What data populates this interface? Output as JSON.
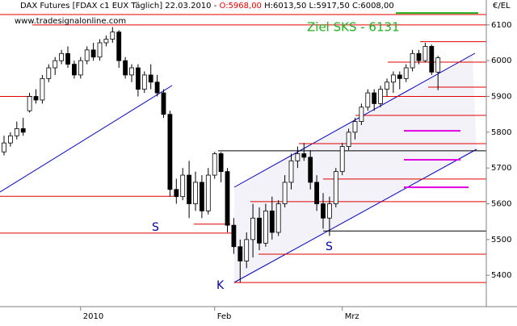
{
  "chart_data": {
    "type": "candlestick",
    "title_parts": [
      "DAX Futures [FDAX c1 EUX  Täglich] 22.03.2010 - ",
      "O:5968,00",
      " H:6013,50 L:5917,50 C:6008,00"
    ],
    "watermark": "www.tradesignalonline.com",
    "unit_label": "€/EL",
    "annotation": "Ziel SKS - 6131",
    "marker_labels": [
      "S",
      "S",
      "K"
    ],
    "categories": [
      null,
      null,
      null,
      null,
      null,
      null,
      null,
      null,
      null,
      null,
      null,
      null,
      "2010",
      null,
      null,
      null,
      null,
      null,
      null,
      null,
      null,
      null,
      null,
      null,
      null,
      null,
      null,
      null,
      null,
      null,
      null,
      null,
      null,
      "Feb",
      null,
      null,
      null,
      null,
      null,
      null,
      null,
      null,
      null,
      null,
      null,
      null,
      null,
      null,
      null,
      null,
      null,
      null,
      null,
      "Mrz",
      null,
      null,
      null,
      null,
      null,
      null,
      null,
      null,
      null,
      null,
      null,
      null,
      null,
      null,
      null
    ],
    "open": [
      5745,
      5770,
      5790,
      5810,
      5860,
      5900,
      5890,
      5950,
      5980,
      6000,
      6020,
      5990,
      5960,
      6000,
      6030,
      6010,
      6050,
      6060,
      6080,
      6000,
      5960,
      5980,
      5920,
      5960,
      5940,
      5910,
      5850,
      5640,
      5620,
      5680,
      5600,
      5660,
      5580,
      5680,
      5740,
      5690,
      5540,
      5480,
      5440,
      5500,
      5560,
      5490,
      5580,
      5520,
      5600,
      5660,
      5720,
      5740,
      5730,
      5660,
      5600,
      5560,
      5600,
      5690,
      5760,
      5800,
      5830,
      5870,
      5910,
      5880,
      5920,
      5940,
      5960,
      5950,
      5980,
      6020,
      6000,
      6040,
      5968
    ],
    "high": [
      5790,
      5800,
      5830,
      5840,
      5910,
      5920,
      5960,
      5990,
      6010,
      6030,
      6040,
      6000,
      6010,
      6040,
      6050,
      6060,
      6070,
      6094,
      6085,
      6010,
      5990,
      5990,
      5970,
      5990,
      5960,
      5920,
      5860,
      5670,
      5700,
      5720,
      5690,
      5680,
      5700,
      5745,
      5745,
      5700,
      5560,
      5500,
      5520,
      5600,
      5590,
      5600,
      5620,
      5610,
      5680,
      5740,
      5760,
      5770,
      5750,
      5680,
      5630,
      5620,
      5700,
      5770,
      5810,
      5840,
      5880,
      5920,
      5920,
      5930,
      5950,
      5970,
      5970,
      5990,
      6030,
      6030,
      6050,
      6045,
      6013.5
    ],
    "low": [
      5735,
      5760,
      5780,
      5790,
      5855,
      5880,
      5880,
      5940,
      5960,
      5990,
      5980,
      5950,
      5950,
      5990,
      6000,
      6000,
      6040,
      6050,
      5980,
      5950,
      5940,
      5900,
      5910,
      5920,
      5900,
      5840,
      5620,
      5600,
      5610,
      5560,
      5580,
      5560,
      5570,
      5670,
      5660,
      5520,
      5460,
      5380,
      5420,
      5450,
      5470,
      5480,
      5500,
      5510,
      5590,
      5640,
      5700,
      5720,
      5640,
      5580,
      5530,
      5510,
      5590,
      5680,
      5750,
      5780,
      5820,
      5860,
      5860,
      5870,
      5900,
      5910,
      5920,
      5940,
      5970,
      5990,
      5995,
      5960,
      5917.5
    ],
    "close": [
      5770,
      5790,
      5810,
      5800,
      5900,
      5890,
      5950,
      5980,
      6000,
      6020,
      5990,
      5960,
      6000,
      6030,
      6010,
      6050,
      6060,
      6080,
      6000,
      5960,
      5980,
      5920,
      5960,
      5940,
      5910,
      5850,
      5640,
      5620,
      5680,
      5600,
      5660,
      5580,
      5680,
      5740,
      5690,
      5540,
      5480,
      5440,
      5500,
      5560,
      5490,
      5580,
      5520,
      5600,
      5660,
      5720,
      5740,
      5730,
      5660,
      5600,
      5560,
      5600,
      5690,
      5760,
      5800,
      5830,
      5870,
      5910,
      5880,
      5920,
      5940,
      5960,
      5950,
      5980,
      6020,
      6000,
      6040,
      5968,
      6008
    ],
    "ylim": [
      5317,
      6147
    ],
    "yticks": [
      5400,
      5500,
      5600,
      5700,
      5800,
      5900,
      6000,
      6100
    ],
    "red_levels": [
      6129,
      6100,
      6053,
      5996,
      5926,
      5900,
      5900,
      5847,
      5768,
      5669,
      5621,
      5606,
      5543,
      5518,
      5459,
      5380
    ],
    "magenta_levels": [
      5804,
      5723,
      5646
    ],
    "black_levels": [
      5748,
      5524
    ],
    "target_level": 6131,
    "colors": {
      "level": "#e00000",
      "magenta": "#e000e0",
      "target": "#20b020",
      "trend": "#0000c0",
      "up": "#ffffff",
      "down": "#000000"
    }
  }
}
